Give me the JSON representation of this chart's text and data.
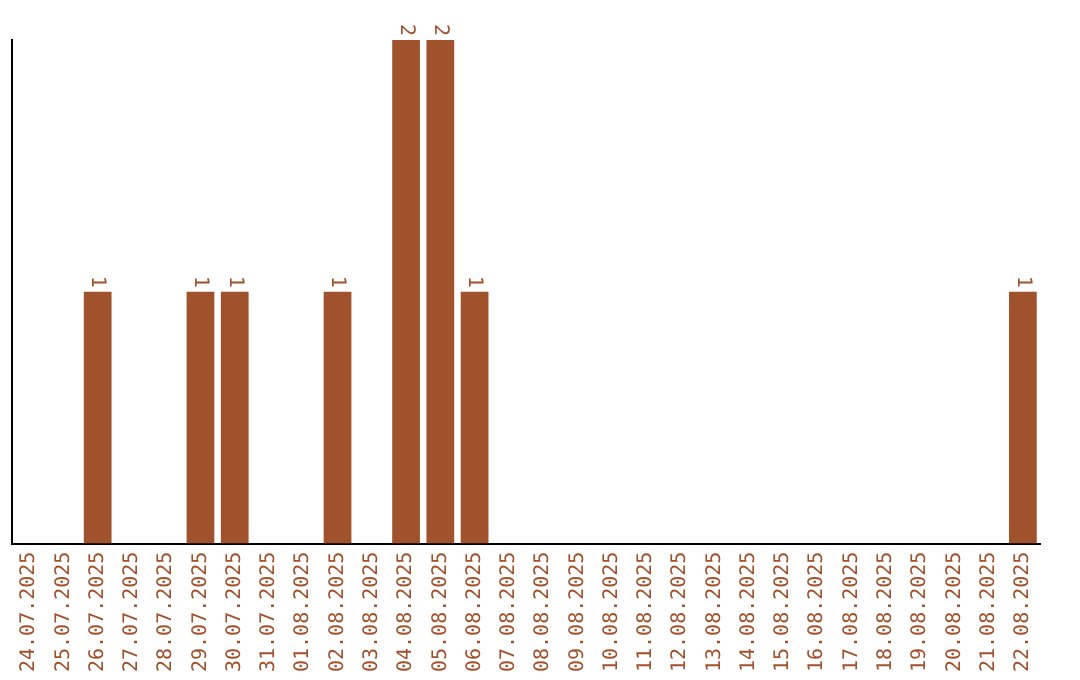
{
  "chart_data": {
    "type": "bar",
    "categories": [
      "24.07.2025",
      "25.07.2025",
      "26.07.2025",
      "27.07.2025",
      "28.07.2025",
      "29.07.2025",
      "30.07.2025",
      "31.07.2025",
      "01.08.2025",
      "02.08.2025",
      "03.08.2025",
      "04.08.2025",
      "05.08.2025",
      "06.08.2025",
      "07.08.2025",
      "08.08.2025",
      "09.08.2025",
      "10.08.2025",
      "11.08.2025",
      "12.08.2025",
      "13.08.2025",
      "14.08.2025",
      "15.08.2025",
      "16.08.2025",
      "17.08.2025",
      "18.08.2025",
      "19.08.2025",
      "20.08.2025",
      "21.08.2025",
      "22.08.2025"
    ],
    "values": [
      0,
      0,
      1,
      0,
      0,
      1,
      1,
      0,
      0,
      1,
      0,
      2,
      2,
      1,
      0,
      0,
      0,
      0,
      0,
      0,
      0,
      0,
      0,
      0,
      0,
      0,
      0,
      0,
      0,
      1
    ],
    "value_labels": [
      null,
      null,
      "1",
      null,
      null,
      "1",
      "1",
      null,
      null,
      "1",
      null,
      "2",
      "2",
      "1",
      null,
      null,
      null,
      null,
      null,
      null,
      null,
      null,
      null,
      null,
      null,
      null,
      null,
      null,
      null,
      "1"
    ],
    "color": "#a0522d",
    "grid": false,
    "legend": false
  }
}
